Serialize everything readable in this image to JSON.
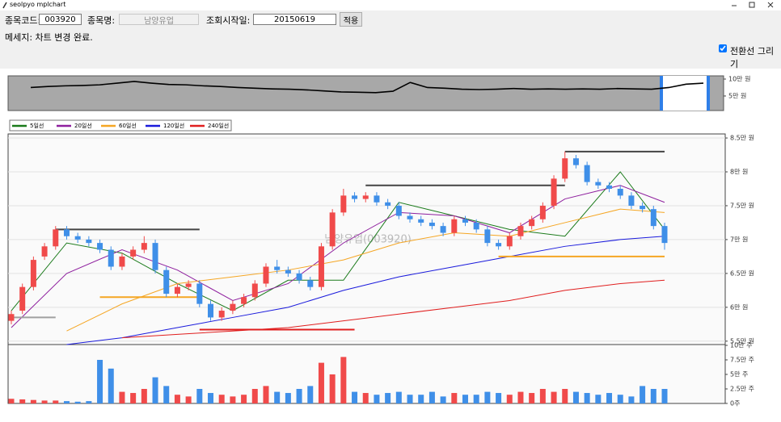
{
  "window_title": "seolpyo mplchart",
  "toolbar": {
    "code_label": "종목코드:",
    "code": "003920",
    "name_label": "종목명:",
    "name": "남양유업",
    "date_label": "조회시작일:",
    "date": "20150619",
    "apply": "적용"
  },
  "message": "메세지: 차트 변경 완료.",
  "option": {
    "label": "전환선 그리기",
    "checked": true
  },
  "chart_data": [
    {
      "type": "line",
      "ylim": [
        0.7,
        10.95
      ],
      "yticks": [
        {
          "value": 10,
          "label": "10만 원"
        },
        {
          "value": 5,
          "label": "5만 원"
        }
      ],
      "series": [
        {
          "color": "#000000",
          "values": [
            7.5,
            7.8,
            8.0,
            8.1,
            8.3,
            8.8,
            9.3,
            8.8,
            8.4,
            8.3,
            8.0,
            7.8,
            7.5,
            7.3,
            7.1,
            7.0,
            6.8,
            6.5,
            6.2,
            6.1,
            6.0,
            6.4,
            9.0,
            7.5,
            7.3,
            7.0,
            6.9,
            7.0,
            7.2,
            7.0,
            7.1,
            7.0,
            7.1,
            7.0,
            7.2,
            7.1,
            7.0,
            7.5,
            8.5,
            8.8
          ]
        }
      ]
    },
    {
      "type": "candlestick",
      "watermark": "남양유업(003920)",
      "grid": true,
      "up_color": "#f04a4a",
      "down_color": "#3f8fe8",
      "ylim": [
        5.45,
        8.56
      ],
      "yticks": [
        {
          "value": 8.5,
          "label": "8.5만 원"
        },
        {
          "value": 8,
          "label": "8만 원"
        },
        {
          "value": 7.5,
          "label": "7.5만 원"
        },
        {
          "value": 7,
          "label": "7만 원"
        },
        {
          "value": 6.5,
          "label": "6.5만 원"
        },
        {
          "value": 6,
          "label": "6만 원"
        },
        {
          "value": 5.5,
          "label": "5.5만 원"
        }
      ],
      "candles": {
        "open": [
          5.8,
          5.95,
          6.3,
          6.75,
          6.9,
          7.15,
          7.05,
          7.0,
          6.95,
          6.85,
          6.6,
          6.75,
          6.85,
          6.95,
          6.55,
          6.2,
          6.3,
          6.35,
          6.05,
          5.85,
          5.95,
          6.05,
          6.15,
          6.35,
          6.6,
          6.55,
          6.5,
          6.4,
          6.3,
          6.9,
          7.4,
          7.65,
          7.6,
          7.65,
          7.55,
          7.5,
          7.35,
          7.3,
          7.25,
          7.2,
          7.1,
          7.3,
          7.25,
          7.15,
          6.95,
          6.9,
          7.05,
          7.2,
          7.3,
          7.5,
          7.9,
          8.2,
          8.1,
          7.85,
          7.8,
          7.75,
          7.65,
          7.5,
          7.45,
          7.2
        ],
        "high": [
          5.95,
          6.35,
          6.75,
          6.95,
          7.2,
          7.2,
          7.1,
          7.05,
          7.0,
          6.9,
          6.8,
          6.9,
          7.05,
          7.0,
          6.6,
          6.35,
          6.4,
          6.4,
          6.1,
          6.0,
          6.1,
          6.2,
          6.4,
          6.65,
          6.7,
          6.6,
          6.55,
          6.45,
          6.95,
          7.45,
          7.75,
          7.7,
          7.7,
          7.7,
          7.6,
          7.55,
          7.4,
          7.35,
          7.3,
          7.25,
          7.35,
          7.35,
          7.3,
          7.2,
          7.0,
          7.1,
          7.25,
          7.35,
          7.55,
          7.95,
          8.3,
          8.25,
          8.15,
          7.9,
          7.85,
          7.8,
          7.7,
          7.55,
          7.5,
          7.25
        ],
        "low": [
          5.75,
          5.9,
          6.25,
          6.7,
          6.85,
          7.0,
          6.95,
          6.9,
          6.8,
          6.55,
          6.55,
          6.7,
          6.8,
          6.5,
          6.15,
          6.15,
          6.25,
          6.0,
          5.8,
          5.8,
          5.9,
          6.0,
          6.1,
          6.3,
          6.5,
          6.45,
          6.35,
          6.25,
          6.25,
          6.85,
          7.35,
          7.55,
          7.55,
          7.5,
          7.45,
          7.3,
          7.25,
          7.2,
          7.15,
          7.05,
          7.05,
          7.2,
          7.1,
          6.9,
          6.85,
          6.85,
          7.0,
          7.15,
          7.25,
          7.45,
          7.85,
          8.05,
          7.8,
          7.75,
          7.7,
          7.6,
          7.45,
          7.4,
          7.15,
          6.85
        ],
        "close": [
          5.9,
          6.3,
          6.7,
          6.9,
          7.15,
          7.05,
          7.0,
          6.95,
          6.85,
          6.6,
          6.75,
          6.85,
          6.95,
          6.55,
          6.2,
          6.3,
          6.35,
          6.05,
          5.85,
          5.95,
          6.05,
          6.15,
          6.35,
          6.6,
          6.55,
          6.5,
          6.4,
          6.3,
          6.9,
          7.4,
          7.65,
          7.6,
          7.65,
          7.55,
          7.5,
          7.35,
          7.3,
          7.25,
          7.2,
          7.1,
          7.3,
          7.25,
          7.15,
          6.95,
          6.9,
          7.05,
          7.2,
          7.3,
          7.5,
          7.9,
          8.2,
          8.1,
          7.85,
          7.8,
          7.75,
          7.65,
          7.5,
          7.45,
          7.2,
          6.95
        ]
      },
      "series": [
        {
          "name": "5일선",
          "color": "#1a7a1a",
          "x": [
            0,
            5,
            10,
            15,
            20,
            25,
            30,
            35,
            40,
            45,
            50,
            55,
            59
          ],
          "values": [
            5.95,
            6.95,
            6.8,
            6.35,
            5.95,
            6.4,
            6.4,
            7.55,
            7.35,
            7.15,
            7.05,
            8.0,
            7.15
          ]
        },
        {
          "name": "20일선",
          "color": "#8e1f9e",
          "x": [
            0,
            5,
            10,
            15,
            20,
            25,
            30,
            35,
            40,
            45,
            50,
            55,
            59
          ],
          "values": [
            5.7,
            6.5,
            6.85,
            6.55,
            6.1,
            6.35,
            6.95,
            7.4,
            7.35,
            7.1,
            7.6,
            7.8,
            7.55
          ]
        },
        {
          "name": "60일선",
          "color": "#f5a623",
          "x": [
            0,
            5,
            10,
            15,
            20,
            25,
            30,
            35,
            40,
            45,
            50,
            55,
            59
          ],
          "values": [
            null,
            5.65,
            6.05,
            6.35,
            6.45,
            6.55,
            6.7,
            6.95,
            7.1,
            7.05,
            7.25,
            7.45,
            7.4
          ]
        },
        {
          "name": "120일선",
          "color": "#1a1adc",
          "x": [
            0,
            5,
            10,
            15,
            20,
            25,
            30,
            35,
            40,
            45,
            50,
            55,
            59
          ],
          "values": [
            null,
            5.45,
            5.55,
            5.7,
            5.85,
            6.0,
            6.25,
            6.45,
            6.6,
            6.75,
            6.9,
            7.0,
            7.05
          ]
        },
        {
          "name": "240일선",
          "color": "#e01e1e",
          "x": [
            0,
            5,
            10,
            15,
            20,
            25,
            30,
            35,
            40,
            45,
            50,
            55,
            59
          ],
          "values": [
            null,
            null,
            5.55,
            5.6,
            5.65,
            5.7,
            5.8,
            5.9,
            6.0,
            6.1,
            6.25,
            6.35,
            6.4
          ]
        }
      ],
      "levels": [
        {
          "color": "#444444",
          "value": 7.15,
          "from": 4,
          "to": 17
        },
        {
          "color": "#444444",
          "value": 7.8,
          "from": 32,
          "to": 50
        },
        {
          "color": "#444444",
          "value": 8.3,
          "from": 50,
          "to": 59
        },
        {
          "color": "#f5a623",
          "value": 6.15,
          "from": 8,
          "to": 17
        },
        {
          "color": "#f5a623",
          "value": 6.75,
          "from": 44,
          "to": 59
        },
        {
          "color": "#a0a0a0",
          "value": 5.85,
          "from": 0,
          "to": 4
        },
        {
          "color": "#e01e1e",
          "value": 5.67,
          "from": 17,
          "to": 31
        }
      ]
    },
    {
      "type": "bar",
      "ylim": [
        0,
        10
      ],
      "yticks": [
        {
          "value": 10,
          "label": "10만 주"
        },
        {
          "value": 7.5,
          "label": "7.5만 주"
        },
        {
          "value": 5,
          "label": "5만 주"
        },
        {
          "value": 2.5,
          "label": "2.5만 주"
        },
        {
          "value": 0,
          "label": "0주"
        }
      ],
      "values": [
        0.8,
        0.7,
        0.6,
        0.5,
        0.5,
        0.4,
        0.3,
        0.4,
        7.5,
        6.0,
        2.0,
        1.8,
        2.5,
        4.5,
        3.0,
        1.5,
        1.2,
        2.5,
        1.8,
        1.5,
        1.2,
        1.5,
        2.5,
        3.0,
        2.0,
        1.8,
        2.5,
        3.0,
        7.0,
        5.0,
        8.0,
        2.0,
        1.8,
        1.5,
        1.8,
        2.0,
        1.5,
        1.5,
        2.0,
        1.2,
        1.8,
        1.5,
        1.5,
        2.0,
        1.8,
        1.5,
        2.0,
        1.8,
        2.5,
        2.0,
        2.5,
        2.0,
        1.8,
        1.5,
        1.8,
        1.5,
        1.2,
        3.0,
        2.5,
        2.5
      ]
    }
  ]
}
